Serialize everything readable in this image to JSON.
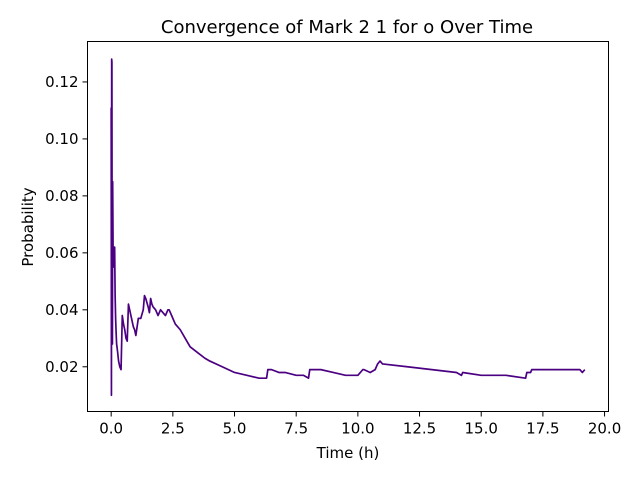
{
  "chart_data": {
    "type": "line",
    "title": "Convergence of Mark 2 1 for o Over Time",
    "xlabel": "Time (h)",
    "ylabel": "Probability",
    "xlim": [
      -0.96,
      20.16
    ],
    "ylim": [
      0.0043,
      0.1342
    ],
    "xticks": [
      0.0,
      2.5,
      5.0,
      7.5,
      10.0,
      12.5,
      15.0,
      17.5,
      20.0
    ],
    "xtick_labels": [
      "0.0",
      "2.5",
      "5.0",
      "7.5",
      "10.0",
      "12.5",
      "15.0",
      "17.5",
      "20.0"
    ],
    "yticks": [
      0.02,
      0.04,
      0.06,
      0.08,
      0.1,
      0.12
    ],
    "ytick_labels": [
      "0.02",
      "0.04",
      "0.06",
      "0.08",
      "0.10",
      "0.12"
    ],
    "grid": false,
    "color": "#4b0082",
    "series": [
      {
        "x": [
          0.0,
          0.01,
          0.02,
          0.03,
          0.04,
          0.05,
          0.06,
          0.07,
          0.08,
          0.1,
          0.12,
          0.14,
          0.16,
          0.18,
          0.2,
          0.22,
          0.25,
          0.3,
          0.35,
          0.4,
          0.45,
          0.5,
          0.55,
          0.6,
          0.65,
          0.7,
          0.8,
          0.9,
          0.95,
          1.0,
          1.1,
          1.2,
          1.3,
          1.35,
          1.4,
          1.5,
          1.55,
          1.6,
          1.65,
          1.7,
          1.8,
          1.9,
          2.0,
          2.1,
          2.2,
          2.3,
          2.35,
          2.4,
          2.45,
          2.5,
          2.6,
          2.8,
          3.0,
          3.2,
          3.5,
          3.8,
          4.0,
          4.5,
          5.0,
          5.5,
          6.0,
          6.3,
          6.35,
          6.5,
          6.8,
          7.0,
          7.05,
          7.5,
          7.8,
          8.0,
          8.05,
          8.2,
          8.5,
          9.0,
          9.5,
          9.6,
          10.0,
          10.2,
          10.25,
          10.5,
          10.7,
          10.8,
          10.9,
          11.0,
          12.0,
          13.0,
          14.0,
          14.2,
          14.25,
          15.0,
          15.1,
          15.15,
          16.0,
          16.8,
          16.85,
          17.0,
          17.05,
          17.5,
          17.55,
          18.0,
          19.0,
          19.1,
          19.2
        ],
        "y": [
          0.111,
          0.01,
          0.128,
          0.127,
          0.033,
          0.028,
          0.085,
          0.071,
          0.056,
          0.062,
          0.055,
          0.062,
          0.045,
          0.037,
          0.032,
          0.028,
          0.026,
          0.022,
          0.02,
          0.019,
          0.038,
          0.035,
          0.033,
          0.03,
          0.029,
          0.042,
          0.038,
          0.034,
          0.033,
          0.031,
          0.037,
          0.037,
          0.04,
          0.045,
          0.044,
          0.041,
          0.039,
          0.044,
          0.042,
          0.041,
          0.04,
          0.038,
          0.04,
          0.039,
          0.038,
          0.04,
          0.04,
          0.039,
          0.038,
          0.037,
          0.035,
          0.033,
          0.03,
          0.027,
          0.025,
          0.023,
          0.022,
          0.02,
          0.018,
          0.017,
          0.016,
          0.016,
          0.019,
          0.019,
          0.018,
          0.018,
          0.018,
          0.017,
          0.017,
          0.016,
          0.019,
          0.019,
          0.019,
          0.018,
          0.017,
          0.017,
          0.017,
          0.019,
          0.019,
          0.018,
          0.019,
          0.021,
          0.022,
          0.021,
          0.02,
          0.019,
          0.018,
          0.017,
          0.018,
          0.017,
          0.017,
          0.017,
          0.017,
          0.016,
          0.018,
          0.018,
          0.019,
          0.019,
          0.019,
          0.019,
          0.019,
          0.018,
          0.019
        ]
      }
    ]
  }
}
